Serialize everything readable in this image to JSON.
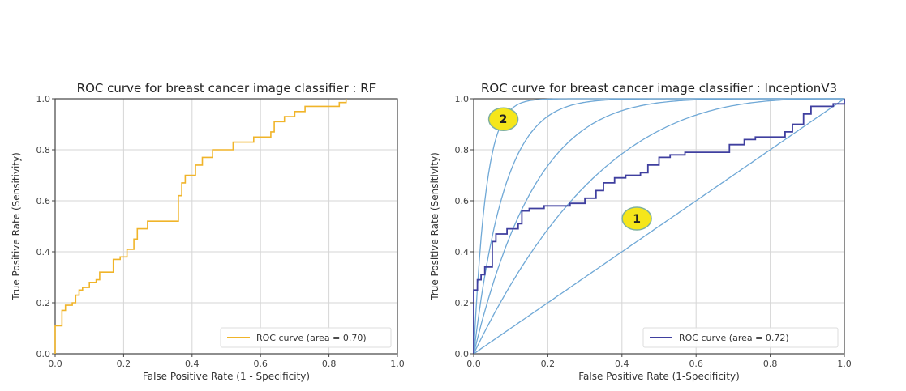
{
  "chart_data": [
    {
      "type": "line",
      "id": "rf",
      "title": "ROC curve for breast cancer image classifier : RF",
      "xlabel": "False Positive Rate (1 - Specificity)",
      "ylabel": "True Positive Rate (Sensitivity)",
      "xlim": [
        0.0,
        1.0
      ],
      "ylim": [
        0.0,
        1.0
      ],
      "xticks": [
        "0.0",
        "0.2",
        "0.4",
        "0.6",
        "0.8",
        "1.0"
      ],
      "yticks": [
        "0.0",
        "0.2",
        "0.4",
        "0.6",
        "0.8",
        "1.0"
      ],
      "grid": true,
      "legend_position": "lower-right",
      "series": [
        {
          "name": "ROC curve (area = 0.70)",
          "color": "#f0b429",
          "step": true,
          "x": [
            0.0,
            0.0,
            0.02,
            0.03,
            0.05,
            0.06,
            0.07,
            0.08,
            0.1,
            0.12,
            0.13,
            0.17,
            0.19,
            0.21,
            0.23,
            0.24,
            0.27,
            0.36,
            0.36,
            0.37,
            0.38,
            0.41,
            0.43,
            0.46,
            0.51,
            0.52,
            0.57,
            0.58,
            0.62,
            0.63,
            0.64,
            0.67,
            0.7,
            0.73,
            0.83,
            0.85
          ],
          "y": [
            0.0,
            0.11,
            0.17,
            0.19,
            0.2,
            0.23,
            0.25,
            0.26,
            0.28,
            0.29,
            0.32,
            0.37,
            0.38,
            0.41,
            0.45,
            0.49,
            0.52,
            0.54,
            0.62,
            0.67,
            0.7,
            0.74,
            0.77,
            0.8,
            0.8,
            0.83,
            0.83,
            0.85,
            0.85,
            0.87,
            0.91,
            0.93,
            0.95,
            0.97,
            0.985,
            1.0
          ]
        }
      ]
    },
    {
      "type": "line",
      "id": "inception",
      "title": "ROC curve for breast cancer image classifier : InceptionV3",
      "xlabel": "False Positive Rate (1-Specificity)",
      "ylabel": "True Positive Rate (Sensitivity)",
      "xlim": [
        0.0,
        1.0
      ],
      "ylim": [
        0.0,
        1.0
      ],
      "xticks": [
        "0.0",
        "0.2",
        "0.4",
        "0.6",
        "0.8",
        "1.0"
      ],
      "yticks": [
        "0.0",
        "0.2",
        "0.4",
        "0.6",
        "0.8",
        "1.0"
      ],
      "grid": true,
      "legend_position": "lower-right",
      "series": [
        {
          "name": "ROC curve (area = 0.72)",
          "color": "#3f3f9f",
          "step": true,
          "x": [
            0.0,
            0.0,
            0.01,
            0.02,
            0.03,
            0.05,
            0.06,
            0.09,
            0.12,
            0.13,
            0.15,
            0.19,
            0.26,
            0.3,
            0.33,
            0.35,
            0.38,
            0.41,
            0.45,
            0.47,
            0.5,
            0.53,
            0.57,
            0.67,
            0.69,
            0.73,
            0.76,
            0.84,
            0.86,
            0.89,
            0.91,
            0.97,
            1.0
          ],
          "y": [
            0.0,
            0.25,
            0.29,
            0.31,
            0.34,
            0.44,
            0.47,
            0.49,
            0.51,
            0.56,
            0.57,
            0.58,
            0.59,
            0.61,
            0.64,
            0.67,
            0.69,
            0.7,
            0.71,
            0.74,
            0.77,
            0.78,
            0.79,
            0.79,
            0.82,
            0.84,
            0.85,
            0.87,
            0.9,
            0.94,
            0.97,
            0.98,
            1.0
          ]
        }
      ],
      "reference_curves": {
        "color": "#6fa8d6",
        "description": "iso-discrimination ROC reference curves from chance (diagonal) to near-perfect",
        "exponents": [
          1,
          3,
          6,
          12,
          30
        ]
      },
      "annotations": [
        {
          "label": "1",
          "x": 0.44,
          "y": 0.53,
          "fill": "#f5e61a",
          "stroke": "#7fb0a0"
        },
        {
          "label": "2",
          "x": 0.08,
          "y": 0.92,
          "fill": "#f5e61a",
          "stroke": "#7fb0a0"
        }
      ]
    }
  ]
}
